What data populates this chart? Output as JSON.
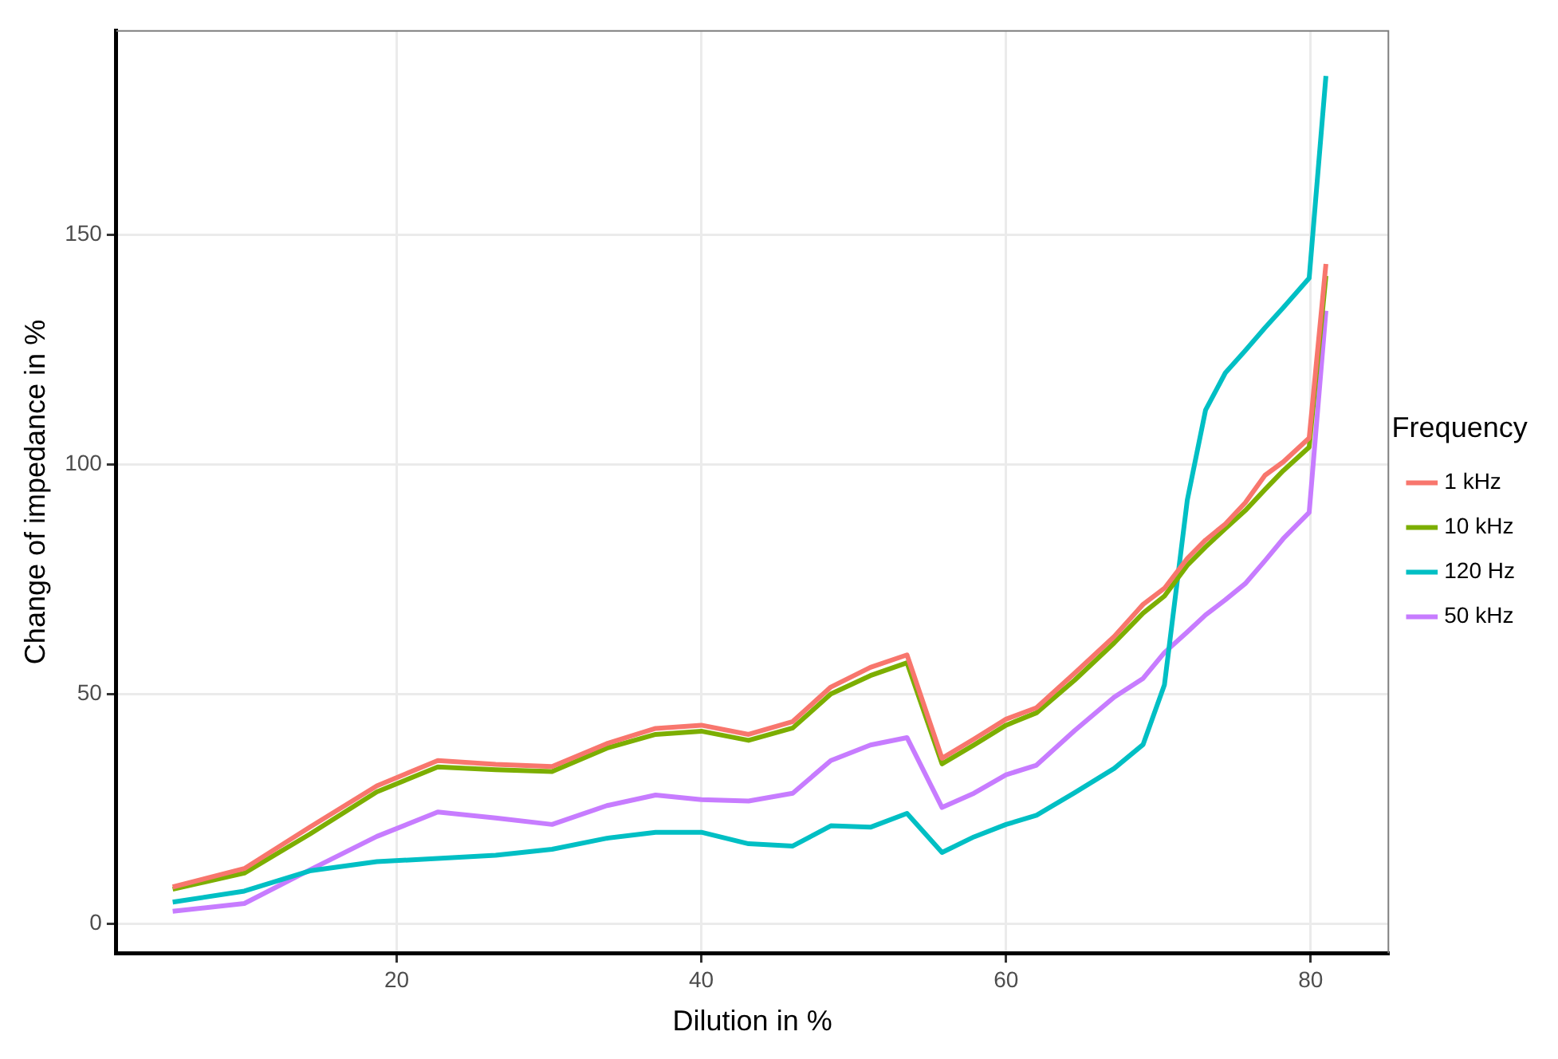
{
  "chart_data": {
    "type": "line",
    "xlabel": "Dilution in %",
    "ylabel": "Change of impedance in %",
    "legend_title": "Frequency",
    "legend": "right",
    "grid": true,
    "x": [
      5.3,
      10.0,
      14.3,
      18.7,
      22.7,
      26.5,
      30.2,
      33.8,
      37.0,
      40.0,
      43.1,
      46.0,
      48.5,
      51.1,
      53.5,
      55.8,
      57.9,
      60.0,
      62.0,
      64.5,
      67.1,
      69.0,
      70.4,
      71.9,
      73.1,
      74.4,
      75.7,
      77.0,
      78.2,
      79.9,
      81.0
    ],
    "xlim": [
      1.6,
      85.1
    ],
    "xticks": [
      20,
      40,
      60,
      80
    ],
    "ylim": [
      -6.4,
      194.3
    ],
    "yticks": [
      0,
      50,
      100,
      150
    ],
    "series": [
      {
        "name": "1 kHz",
        "color": "#f8766d",
        "values": [
          8,
          12,
          21,
          30,
          35.5,
          34.7,
          34.2,
          39.2,
          42.5,
          43.2,
          41.2,
          44,
          51.5,
          55.8,
          58.5,
          36,
          40.2,
          44.5,
          47,
          54.5,
          62.5,
          69.5,
          73,
          79.5,
          83.5,
          87,
          91.6,
          97.6,
          100.5,
          105.7,
          143.6
        ]
      },
      {
        "name": "10 kHz",
        "color": "#7cae00",
        "values": [
          7.5,
          11,
          19.5,
          28.7,
          34.1,
          33.5,
          33.1,
          38.2,
          41.2,
          41.9,
          39.9,
          42.6,
          50,
          54,
          56.8,
          34.8,
          38.9,
          43.2,
          45.9,
          53,
          61.1,
          67.6,
          71.3,
          78,
          82,
          86,
          89.9,
          94.5,
          98.6,
          103.7,
          141
        ]
      },
      {
        "name": "120 Hz",
        "color": "#00bfc4",
        "values": [
          4.7,
          7.1,
          11.5,
          13.5,
          14.2,
          14.9,
          16.2,
          18.6,
          19.9,
          19.9,
          17.4,
          16.9,
          21.3,
          21,
          24,
          15.5,
          18.9,
          21.6,
          23.6,
          28.5,
          33.8,
          39,
          52,
          92.2,
          111.8,
          119.9,
          124.7,
          129.7,
          134.1,
          140.5,
          184.5
        ]
      },
      {
        "name": "50 kHz",
        "color": "#c77cff",
        "values": [
          2.7,
          4.4,
          11.7,
          19,
          24.3,
          23,
          21.6,
          25.7,
          28,
          27,
          26.7,
          28.4,
          35.5,
          38.9,
          40.5,
          25.3,
          28.4,
          32.4,
          34.5,
          42,
          49.3,
          53.4,
          59,
          63.5,
          67.2,
          70.5,
          74,
          79,
          83.8,
          89.5,
          133.4
        ]
      }
    ]
  }
}
